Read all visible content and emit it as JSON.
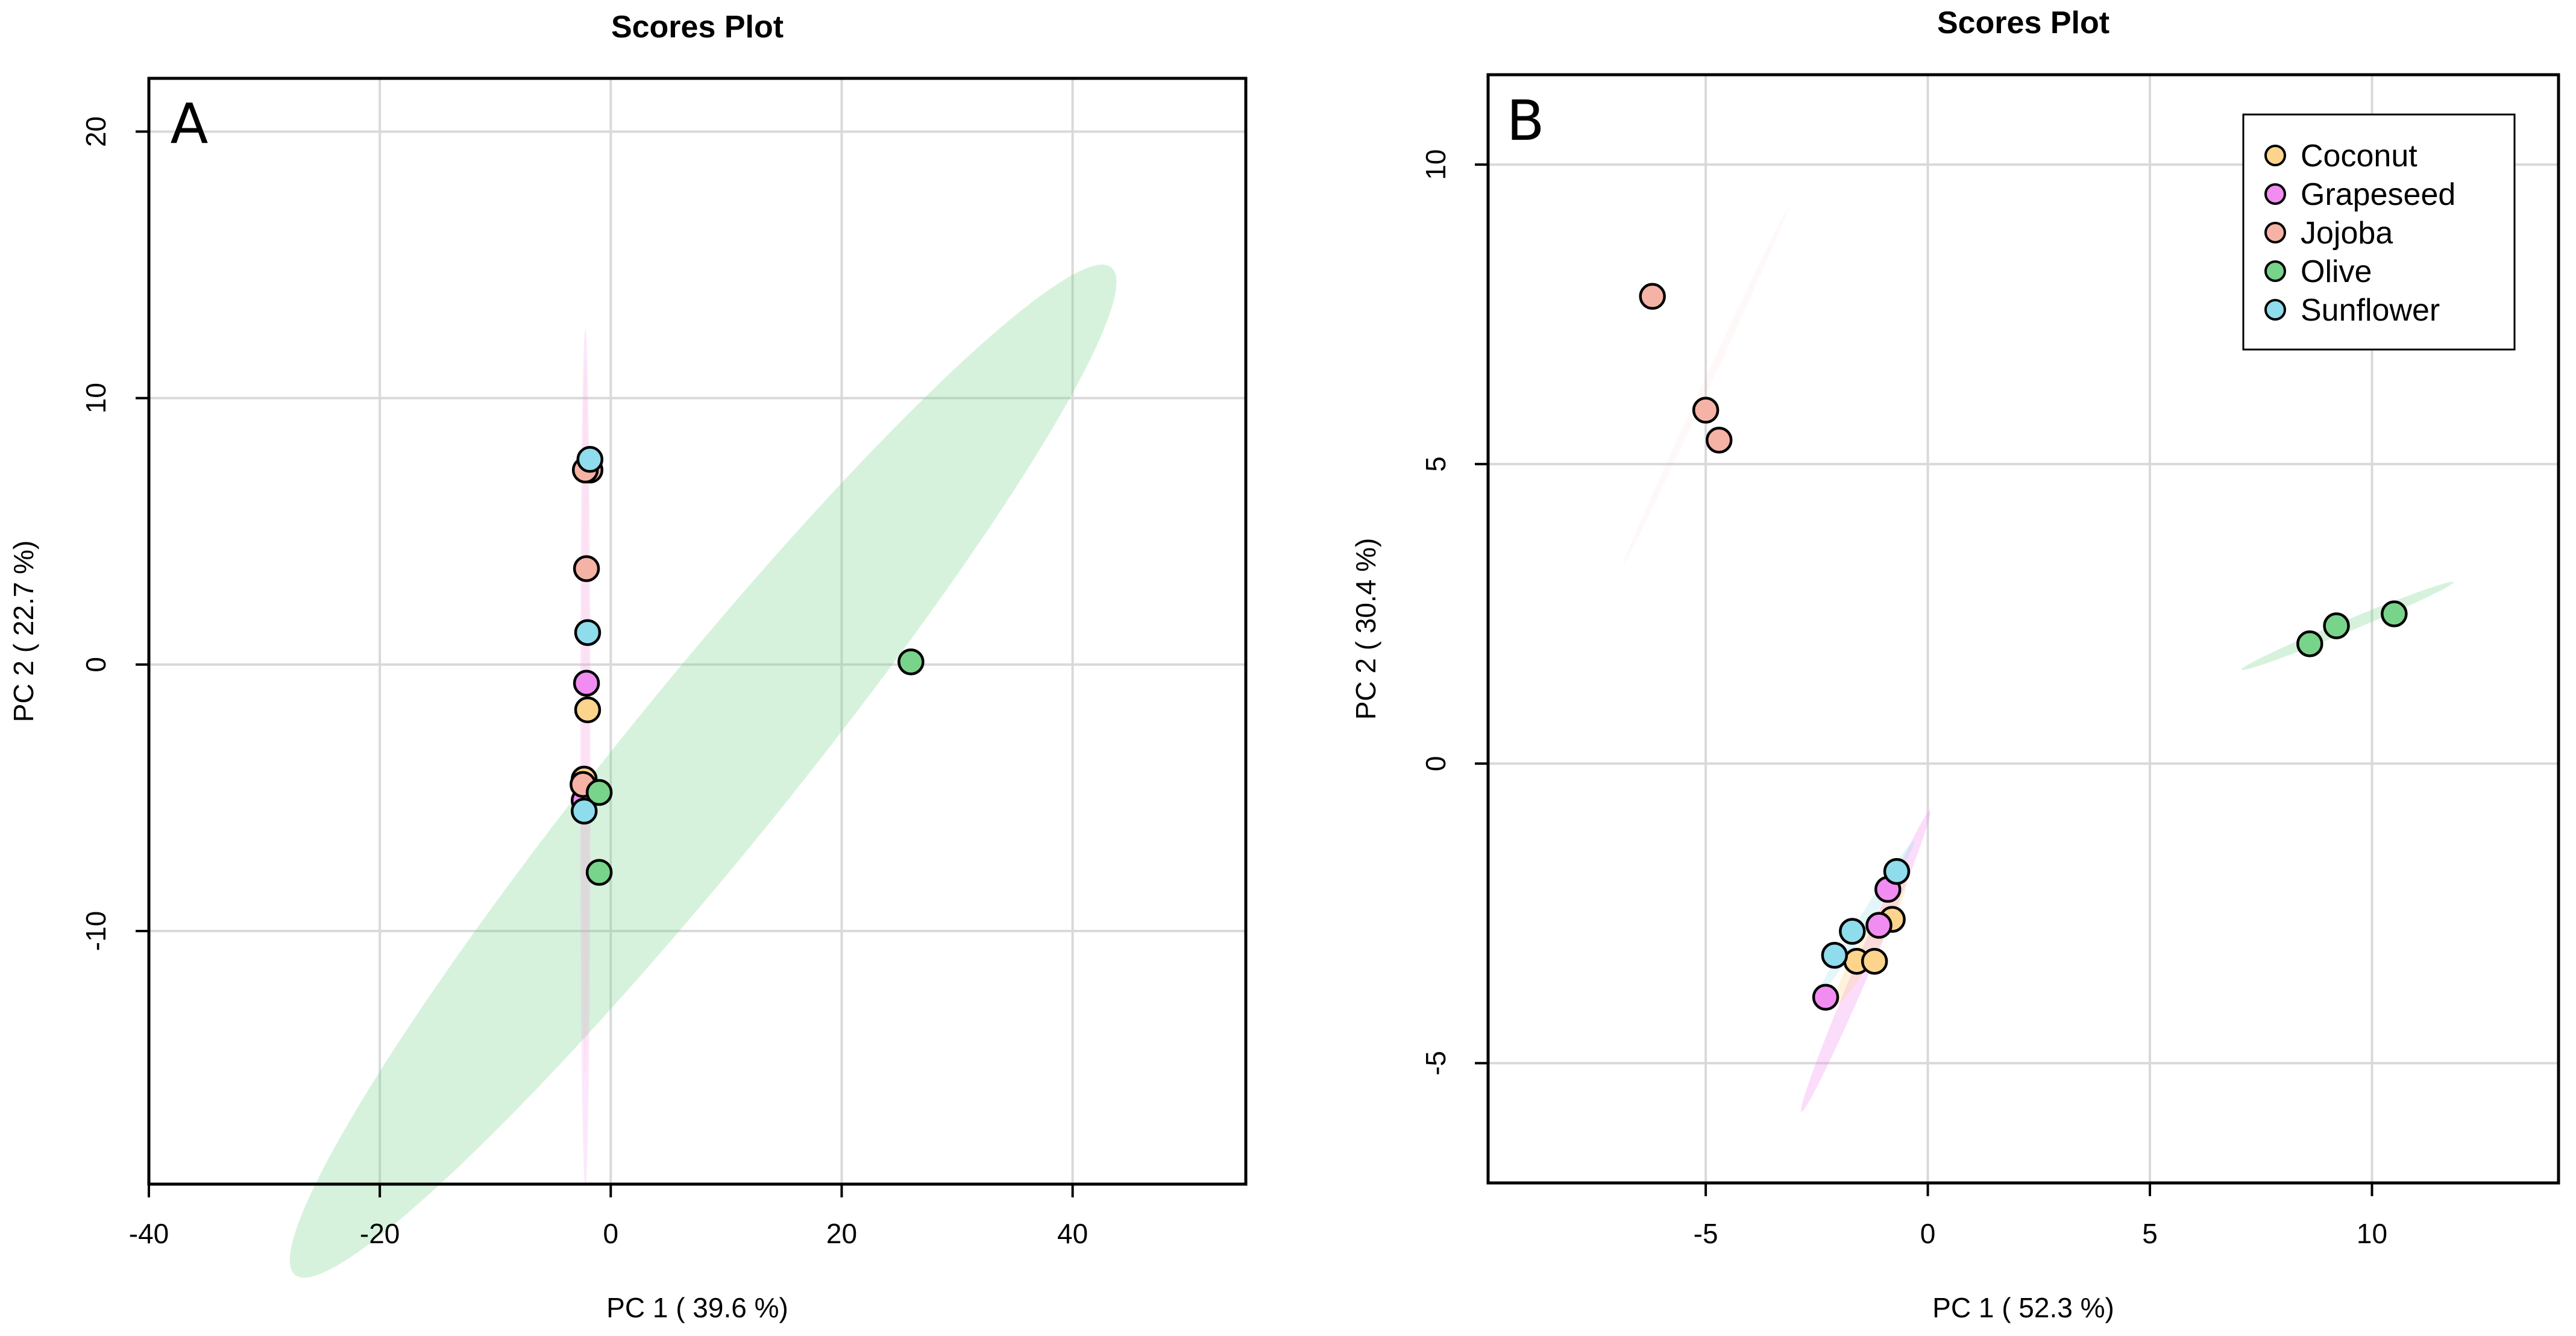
{
  "palette": {
    "Coconut": "#fcd48c",
    "Grapeseed": "#f18df1",
    "Jojoba": "#f5b3a6",
    "Olive": "#78d48a",
    "Sunflower": "#8fdcec"
  },
  "chart_data": [
    {
      "type": "scatter",
      "panel": "A",
      "title": "Scores Plot",
      "xlabel": "PC 1 ( 39.6 %)",
      "ylabel": "PC 2 ( 22.7 %)",
      "xlim": [
        -40,
        55
      ],
      "ylim": [
        -19.5,
        22
      ],
      "xticks": [
        -40,
        -20,
        0,
        20,
        40
      ],
      "yticks": [
        -10,
        0,
        10,
        20
      ],
      "x_gridlines": [
        -20,
        0,
        20,
        40
      ],
      "y_gridlines": [
        -10,
        0,
        10,
        20
      ],
      "legend": null,
      "ellipses": [
        {
          "group": "Olive",
          "center": [
            8,
            -4
          ],
          "semi_major": 40.3,
          "semi_minor": 4.4,
          "angle_deg": 27.5,
          "opacity": 0.3
        },
        {
          "group": "Grapeseed",
          "center": [
            -2.2,
            -3.5
          ],
          "semi_major": 16.1,
          "semi_minor": 0.45,
          "angle_deg": 90,
          "opacity": 0.2
        },
        {
          "group": "Jojoba",
          "center": [
            -2.2,
            -2
          ],
          "semi_major": 13.5,
          "semi_minor": 0.3,
          "angle_deg": 90,
          "opacity": 0.12
        }
      ],
      "series": [
        {
          "name": "Coconut",
          "points": [
            [
              -2,
              -1.7
            ],
            [
              -2.3,
              -4.3
            ]
          ]
        },
        {
          "name": "Grapeseed",
          "points": [
            [
              -2.1,
              -0.7
            ],
            [
              -2.3,
              -5.1
            ]
          ]
        },
        {
          "name": "Jojoba",
          "points": [
            [
              -1.8,
              7.3
            ],
            [
              -2.2,
              7.3
            ],
            [
              -2.1,
              3.6
            ],
            [
              -2.4,
              -4.5
            ]
          ]
        },
        {
          "name": "Olive",
          "points": [
            [
              26,
              0.1
            ],
            [
              -1,
              -4.8
            ],
            [
              -1,
              -7.8
            ]
          ]
        },
        {
          "name": "Sunflower",
          "points": [
            [
              -1.8,
              7.7
            ],
            [
              -2,
              1.2
            ],
            [
              -2.3,
              -5.5
            ]
          ]
        }
      ]
    },
    {
      "type": "scatter",
      "panel": "B",
      "title": "Scores Plot",
      "xlabel": "PC 1 ( 52.3 %)",
      "ylabel": "PC 2 ( 30.4 %)",
      "xlim": [
        -9.9,
        14.2
      ],
      "ylim": [
        -7,
        11.5
      ],
      "xticks": [
        -5,
        0,
        5,
        10
      ],
      "yticks": [
        -5,
        0,
        5,
        10
      ],
      "x_gridlines": [
        -5,
        0,
        5,
        10
      ],
      "y_gridlines": [
        -5,
        0,
        5,
        10
      ],
      "legend": {
        "position": "top-right",
        "entries": [
          "Coconut",
          "Grapeseed",
          "Jojoba",
          "Olive",
          "Sunflower"
        ]
      },
      "ellipses": [
        {
          "group": "Olive",
          "center": [
            9.45,
            2.3
          ],
          "semi_major": 2.5,
          "semi_minor": 0.1,
          "angle_deg": 17,
          "opacity": 0.3
        },
        {
          "group": "Grapeseed",
          "center": [
            -1.4,
            -3.3
          ],
          "semi_major": 2.9,
          "semi_minor": 0.17,
          "angle_deg": 60,
          "opacity": 0.3
        },
        {
          "group": "Coconut",
          "center": [
            -1.3,
            -3
          ],
          "semi_major": 1.3,
          "semi_minor": 0.2,
          "angle_deg": 52,
          "opacity": 0.3
        },
        {
          "group": "Sunflower",
          "center": [
            -1.4,
            -2.6
          ],
          "semi_major": 1.7,
          "semi_minor": 0.12,
          "angle_deg": 50,
          "opacity": 0.25
        },
        {
          "group": "Jojoba",
          "center": [
            -5,
            6.3
          ],
          "semi_major": 3.5,
          "semi_minor": 0.08,
          "angle_deg": 58,
          "opacity": 0.08
        }
      ],
      "series": [
        {
          "name": "Coconut",
          "points": [
            [
              -0.8,
              -2.6
            ],
            [
              -1.6,
              -3.3
            ],
            [
              -1.2,
              -3.3
            ]
          ]
        },
        {
          "name": "Grapeseed",
          "points": [
            [
              -0.9,
              -2.1
            ],
            [
              -1.1,
              -2.7
            ],
            [
              -2.3,
              -3.9
            ]
          ]
        },
        {
          "name": "Jojoba",
          "points": [
            [
              -6.2,
              7.8
            ],
            [
              -5,
              5.9
            ],
            [
              -4.7,
              5.4
            ]
          ]
        },
        {
          "name": "Olive",
          "points": [
            [
              10.5,
              2.5
            ],
            [
              9.2,
              2.3
            ],
            [
              8.6,
              2
            ]
          ]
        },
        {
          "name": "Sunflower",
          "points": [
            [
              -0.7,
              -1.8
            ],
            [
              -1.7,
              -2.8
            ],
            [
              -2.1,
              -3.2
            ]
          ]
        }
      ]
    }
  ]
}
